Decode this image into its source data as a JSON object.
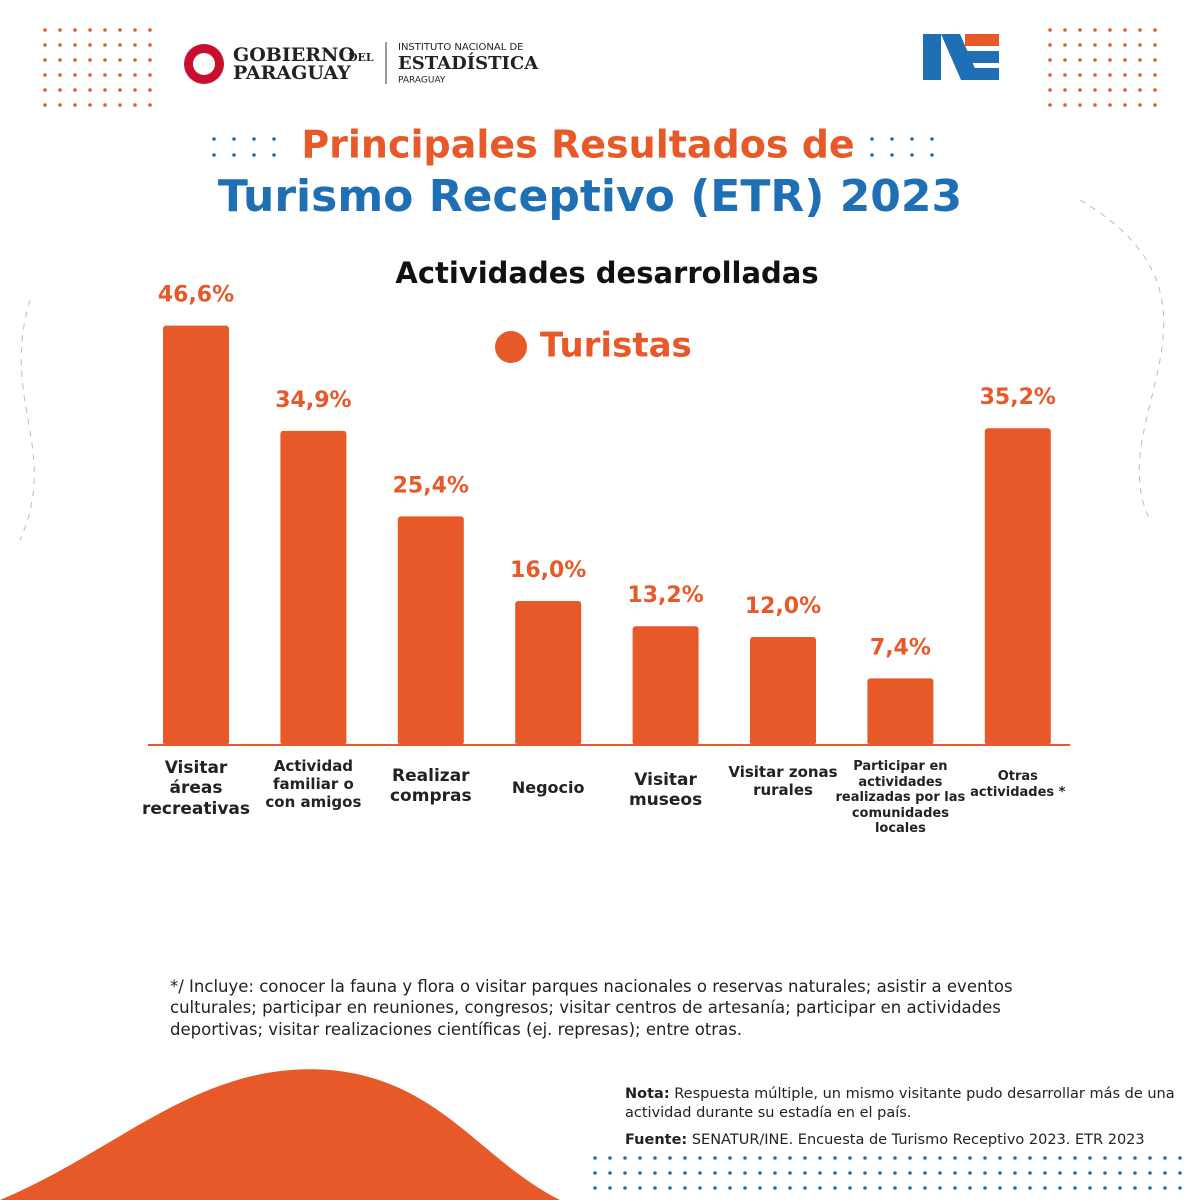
{
  "header": {
    "gov_line1": "GOBIERNO",
    "gov_del": "DEL",
    "gov_line2": "PARAGUAY",
    "ine_line1": "INSTITUTO NACIONAL DE",
    "ine_line2": "ESTADÍSTICA",
    "ine_line3": "PARAGUAY"
  },
  "chart_data": {
    "type": "bar",
    "title": "Principales Resultados de",
    "title_line2": "Turismo Receptivo (ETR) 2023",
    "subtitle": "Actividades desarrolladas",
    "categories": [
      "Visitar áreas recreativas",
      "Actividad familiar o con amigos",
      "Realizar compras",
      "Negocio",
      "Visitar museos",
      "Visitar zonas rurales",
      "Participar en actividades realizadas por las comunidades locales",
      "Otras actividades *"
    ],
    "series": [
      {
        "name": "Turistas",
        "color": "#e8592a",
        "values": [
          46.6,
          34.9,
          25.4,
          16.0,
          13.2,
          12.0,
          7.4,
          35.2
        ],
        "value_labels": [
          "46,6%",
          "34,9%",
          "25,4%",
          "16,0%",
          "13,2%",
          "12,0%",
          "7,4%",
          "35,2%"
        ]
      }
    ]
  },
  "footnote": "*/ Incluye: conocer la fauna y flora o visitar parques nacionales o reservas naturales; asistir a eventos culturales; participar en reuniones, congresos; visitar centros de artesanía; participar en actividades deportivas; visitar realizaciones científicas (ej. represas); entre otras.",
  "nota": {
    "label": "Nota:",
    "text": "Respuesta múltiple, un mismo visitante pudo desarrollar más de una actividad durante su estadía en el país."
  },
  "fuente": {
    "label": "Fuente:",
    "text": "SENATUR/INE. Encuesta de Turismo Receptivo 2023. ETR 2023"
  }
}
